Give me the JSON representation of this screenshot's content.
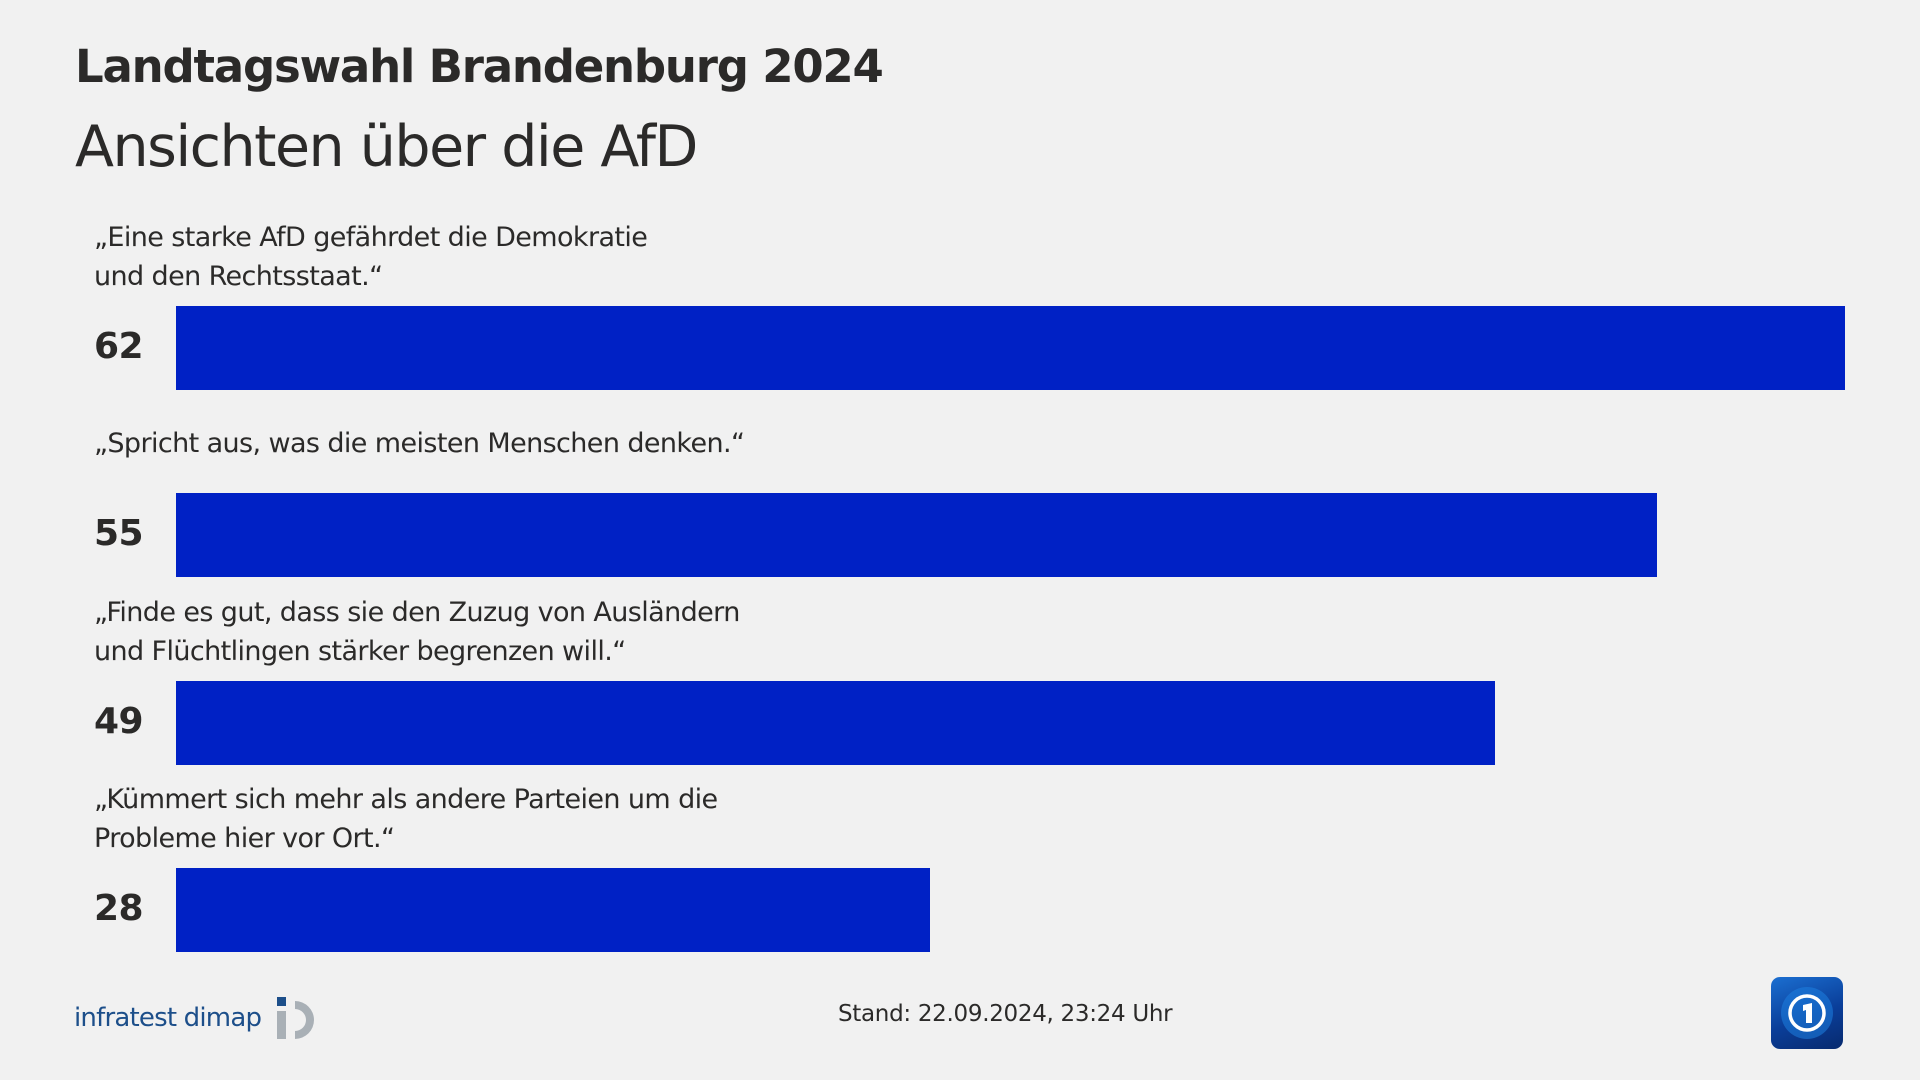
{
  "header": {
    "title": "Landtagswahl Brandenburg 2024",
    "subtitle": "Ansichten über die AfD"
  },
  "items": [
    {
      "label": "„Eine starke AfD gefährdet die Demokratie\nund den Rechtsstaat.“",
      "value": "62"
    },
    {
      "label": "„Spricht aus, was die meisten Menschen denken.“",
      "value": "55"
    },
    {
      "label": "„Finde es gut, dass sie den Zuzug von Ausländern\nund Flüchtlingen stärker begrenzen will.“",
      "value": "49"
    },
    {
      "label": "„Kümmert sich mehr als andere Parteien um die\nProbleme hier vor Ort.“",
      "value": "28"
    }
  ],
  "footer": {
    "source_logo": "infratest dimap",
    "stand": "Stand:  22.09.2024, 23:24 Uhr",
    "broadcaster_icon": "tagesschau-globe-icon"
  },
  "colors": {
    "bar": "#0021c5",
    "background": "#f1f1f1",
    "text": "#2b2a29",
    "idm_blue": "#1d4f8a",
    "idm_gray": "#a9b0b6"
  },
  "chart_data": {
    "type": "bar",
    "orientation": "horizontal",
    "title": "Landtagswahl Brandenburg 2024",
    "subtitle": "Ansichten über die AfD",
    "categories": [
      "„Eine starke AfD gefährdet die Demokratie und den Rechtsstaat.“",
      "„Spricht aus, was die meisten Menschen denken.“",
      "„Finde es gut, dass sie den Zuzug von Ausländern und Flüchtlingen stärker begrenzen will.“",
      "„Kümmert sich mehr als andere Parteien um die Probleme hier vor Ort.“"
    ],
    "values": [
      62,
      55,
      49,
      28
    ],
    "xlabel": "",
    "ylabel": "",
    "unit": "%",
    "grid": false,
    "legend": null,
    "source": "infratest dimap",
    "note": "Stand: 22.09.2024, 23:24 Uhr"
  }
}
